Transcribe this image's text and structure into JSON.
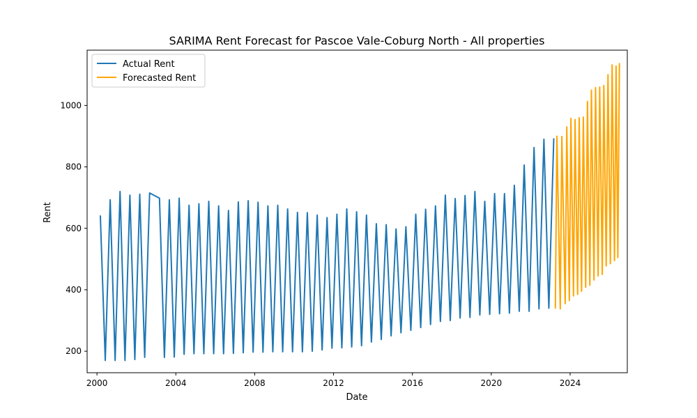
{
  "chart_data": {
    "type": "line",
    "title": "SARIMA Rent Forecast for Pascoe Vale-Coburg North - All properties",
    "xlabel": "Date",
    "ylabel": "Rent",
    "xlim": [
      1999.5,
      2026.9
    ],
    "ylim": [
      130,
      1180
    ],
    "x_ticks": [
      "2000",
      "2004",
      "2008",
      "2012",
      "2016",
      "2020",
      "2024"
    ],
    "y_ticks": [
      "200",
      "400",
      "600",
      "800",
      "1000"
    ],
    "legend_position": "upper-left",
    "grid": false,
    "series": [
      {
        "name": "Actual Rent",
        "color": "#1f77b4",
        "points": [
          [
            2000.17,
            642
          ],
          [
            2000.42,
            170
          ],
          [
            2000.67,
            693
          ],
          [
            2000.92,
            170
          ],
          [
            2001.17,
            720
          ],
          [
            2001.42,
            170
          ],
          [
            2001.67,
            708
          ],
          [
            2001.92,
            173
          ],
          [
            2002.17,
            711
          ],
          [
            2002.42,
            180
          ],
          [
            2002.67,
            715
          ],
          [
            2003.17,
            698
          ],
          [
            2003.42,
            180
          ],
          [
            2003.67,
            693
          ],
          [
            2003.92,
            181
          ],
          [
            2004.17,
            698
          ],
          [
            2004.42,
            190
          ],
          [
            2004.67,
            675
          ],
          [
            2004.92,
            192
          ],
          [
            2005.17,
            680
          ],
          [
            2005.42,
            192
          ],
          [
            2005.67,
            688
          ],
          [
            2005.92,
            192
          ],
          [
            2006.17,
            673
          ],
          [
            2006.42,
            192
          ],
          [
            2006.67,
            658
          ],
          [
            2006.92,
            193
          ],
          [
            2007.17,
            686
          ],
          [
            2007.42,
            195
          ],
          [
            2007.67,
            690
          ],
          [
            2007.92,
            197
          ],
          [
            2008.17,
            685
          ],
          [
            2008.42,
            197
          ],
          [
            2008.67,
            673
          ],
          [
            2008.92,
            198
          ],
          [
            2009.17,
            675
          ],
          [
            2009.42,
            198
          ],
          [
            2009.67,
            663
          ],
          [
            2009.92,
            198
          ],
          [
            2010.17,
            652
          ],
          [
            2010.42,
            198
          ],
          [
            2010.67,
            651
          ],
          [
            2010.92,
            200
          ],
          [
            2011.17,
            643
          ],
          [
            2011.42,
            204
          ],
          [
            2011.67,
            635
          ],
          [
            2011.92,
            210
          ],
          [
            2012.17,
            646
          ],
          [
            2012.42,
            211
          ],
          [
            2012.67,
            663
          ],
          [
            2012.92,
            214
          ],
          [
            2013.17,
            654
          ],
          [
            2013.42,
            218
          ],
          [
            2013.67,
            643
          ],
          [
            2013.92,
            230
          ],
          [
            2014.17,
            615
          ],
          [
            2014.42,
            238
          ],
          [
            2014.67,
            612
          ],
          [
            2014.92,
            250
          ],
          [
            2015.17,
            598
          ],
          [
            2015.42,
            260
          ],
          [
            2015.67,
            605
          ],
          [
            2015.92,
            268
          ],
          [
            2016.17,
            646
          ],
          [
            2016.42,
            277
          ],
          [
            2016.67,
            662
          ],
          [
            2016.92,
            287
          ],
          [
            2017.17,
            673
          ],
          [
            2017.42,
            297
          ],
          [
            2017.67,
            708
          ],
          [
            2017.92,
            300
          ],
          [
            2018.17,
            697
          ],
          [
            2018.42,
            308
          ],
          [
            2018.67,
            707
          ],
          [
            2018.92,
            310
          ],
          [
            2019.17,
            720
          ],
          [
            2019.42,
            318
          ],
          [
            2019.67,
            688
          ],
          [
            2019.92,
            320
          ],
          [
            2020.17,
            713
          ],
          [
            2020.42,
            322
          ],
          [
            2020.67,
            713
          ],
          [
            2020.92,
            324
          ],
          [
            2021.17,
            740
          ],
          [
            2021.42,
            330
          ],
          [
            2021.67,
            806
          ],
          [
            2021.92,
            330
          ],
          [
            2022.17,
            863
          ],
          [
            2022.42,
            338
          ],
          [
            2022.67,
            890
          ],
          [
            2022.92,
            340
          ],
          [
            2023.17,
            893
          ]
        ]
      },
      {
        "name": "Forecasted Rent",
        "color": "#ffa500",
        "points": [
          [
            2023.25,
            339
          ],
          [
            2023.33,
            900
          ],
          [
            2023.5,
            338
          ],
          [
            2023.58,
            899
          ],
          [
            2023.75,
            355
          ],
          [
            2023.83,
            930
          ],
          [
            2023.96,
            365
          ],
          [
            2024.04,
            958
          ],
          [
            2024.17,
            380
          ],
          [
            2024.25,
            954
          ],
          [
            2024.38,
            385
          ],
          [
            2024.46,
            960
          ],
          [
            2024.58,
            395
          ],
          [
            2024.67,
            962
          ],
          [
            2024.79,
            408
          ],
          [
            2024.88,
            1013
          ],
          [
            2025.0,
            415
          ],
          [
            2025.08,
            1050
          ],
          [
            2025.21,
            432
          ],
          [
            2025.29,
            1058
          ],
          [
            2025.42,
            445
          ],
          [
            2025.5,
            1060
          ],
          [
            2025.63,
            450
          ],
          [
            2025.71,
            1065
          ],
          [
            2025.83,
            478
          ],
          [
            2025.92,
            1100
          ],
          [
            2026.04,
            485
          ],
          [
            2026.13,
            1132
          ],
          [
            2026.25,
            495
          ],
          [
            2026.33,
            1128
          ],
          [
            2026.42,
            505
          ],
          [
            2026.5,
            1138
          ]
        ]
      }
    ]
  }
}
